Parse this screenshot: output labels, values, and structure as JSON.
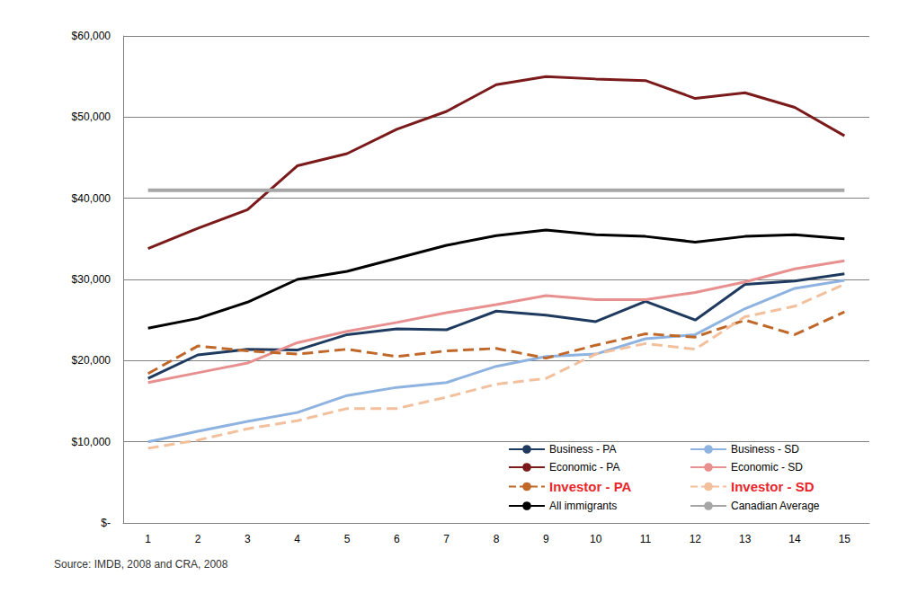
{
  "chart_data": {
    "type": "line",
    "categories": [
      "1",
      "2",
      "3",
      "4",
      "5",
      "6",
      "7",
      "8",
      "9",
      "10",
      "11",
      "12",
      "13",
      "14",
      "15"
    ],
    "ylim": [
      0,
      60000
    ],
    "yticks": [
      {
        "value": 0,
        "label": "$-"
      },
      {
        "value": 10000,
        "label": "$10,000"
      },
      {
        "value": 20000,
        "label": "$20,000"
      },
      {
        "value": 30000,
        "label": "$30,000"
      },
      {
        "value": 40000,
        "label": "$40,000"
      },
      {
        "value": 50000,
        "label": "$50,000"
      },
      {
        "value": 60000,
        "label": "$60,000"
      }
    ],
    "grid": true,
    "legend": "lower right",
    "annotations": [
      "Source: IMDB, 2008 and CRA, 2008"
    ],
    "series": [
      {
        "name": "Business - PA",
        "color": "#1f3a5f",
        "values": [
          17800,
          20700,
          21400,
          21300,
          23200,
          23900,
          23800,
          26100,
          25600,
          24800,
          27300,
          25000,
          29400,
          29800,
          30700
        ]
      },
      {
        "name": "Business - SD",
        "color": "#8fb3e0",
        "values": [
          10000,
          11300,
          12500,
          13600,
          15700,
          16700,
          17300,
          19300,
          20500,
          20800,
          22700,
          23200,
          26400,
          28900,
          29900
        ]
      },
      {
        "name": "Economic - PA",
        "color": "#7b1a1a",
        "values": [
          33800,
          36300,
          38600,
          44000,
          45500,
          48500,
          50700,
          54000,
          55000,
          54700,
          54500,
          52300,
          53000,
          51200,
          47700
        ]
      },
      {
        "name": "Economic - SD",
        "color": "#e8908f",
        "values": [
          17300,
          18500,
          19700,
          22200,
          23600,
          24700,
          25900,
          26900,
          28000,
          27500,
          27500,
          28400,
          29700,
          31300,
          32300
        ]
      },
      {
        "name": "Investor - PA",
        "color": "#c0672a",
        "line_style": "dashed",
        "values": [
          18400,
          21800,
          21200,
          20800,
          21400,
          20500,
          21200,
          21500,
          20300,
          21900,
          23300,
          22900,
          25000,
          23200,
          26000
        ]
      },
      {
        "name": "Investor - SD",
        "color": "#f2c09c",
        "line_style": "dashed",
        "values": [
          9200,
          10200,
          11600,
          12600,
          14100,
          14100,
          15500,
          17100,
          17800,
          20800,
          22100,
          21400,
          25400,
          26700,
          29400
        ]
      },
      {
        "name": "All immigrants",
        "color": "#000000",
        "values": [
          24000,
          25200,
          27200,
          30000,
          31000,
          32600,
          34200,
          35400,
          36100,
          35500,
          35300,
          34600,
          35300,
          35500,
          35000
        ]
      },
      {
        "name": "Canadian Average",
        "color": "#a6a6a6",
        "values": [
          41000,
          41000,
          41000,
          41000,
          41000,
          41000,
          41000,
          41000,
          41000,
          41000,
          41000,
          41000,
          41000,
          41000,
          41000
        ]
      }
    ]
  }
}
